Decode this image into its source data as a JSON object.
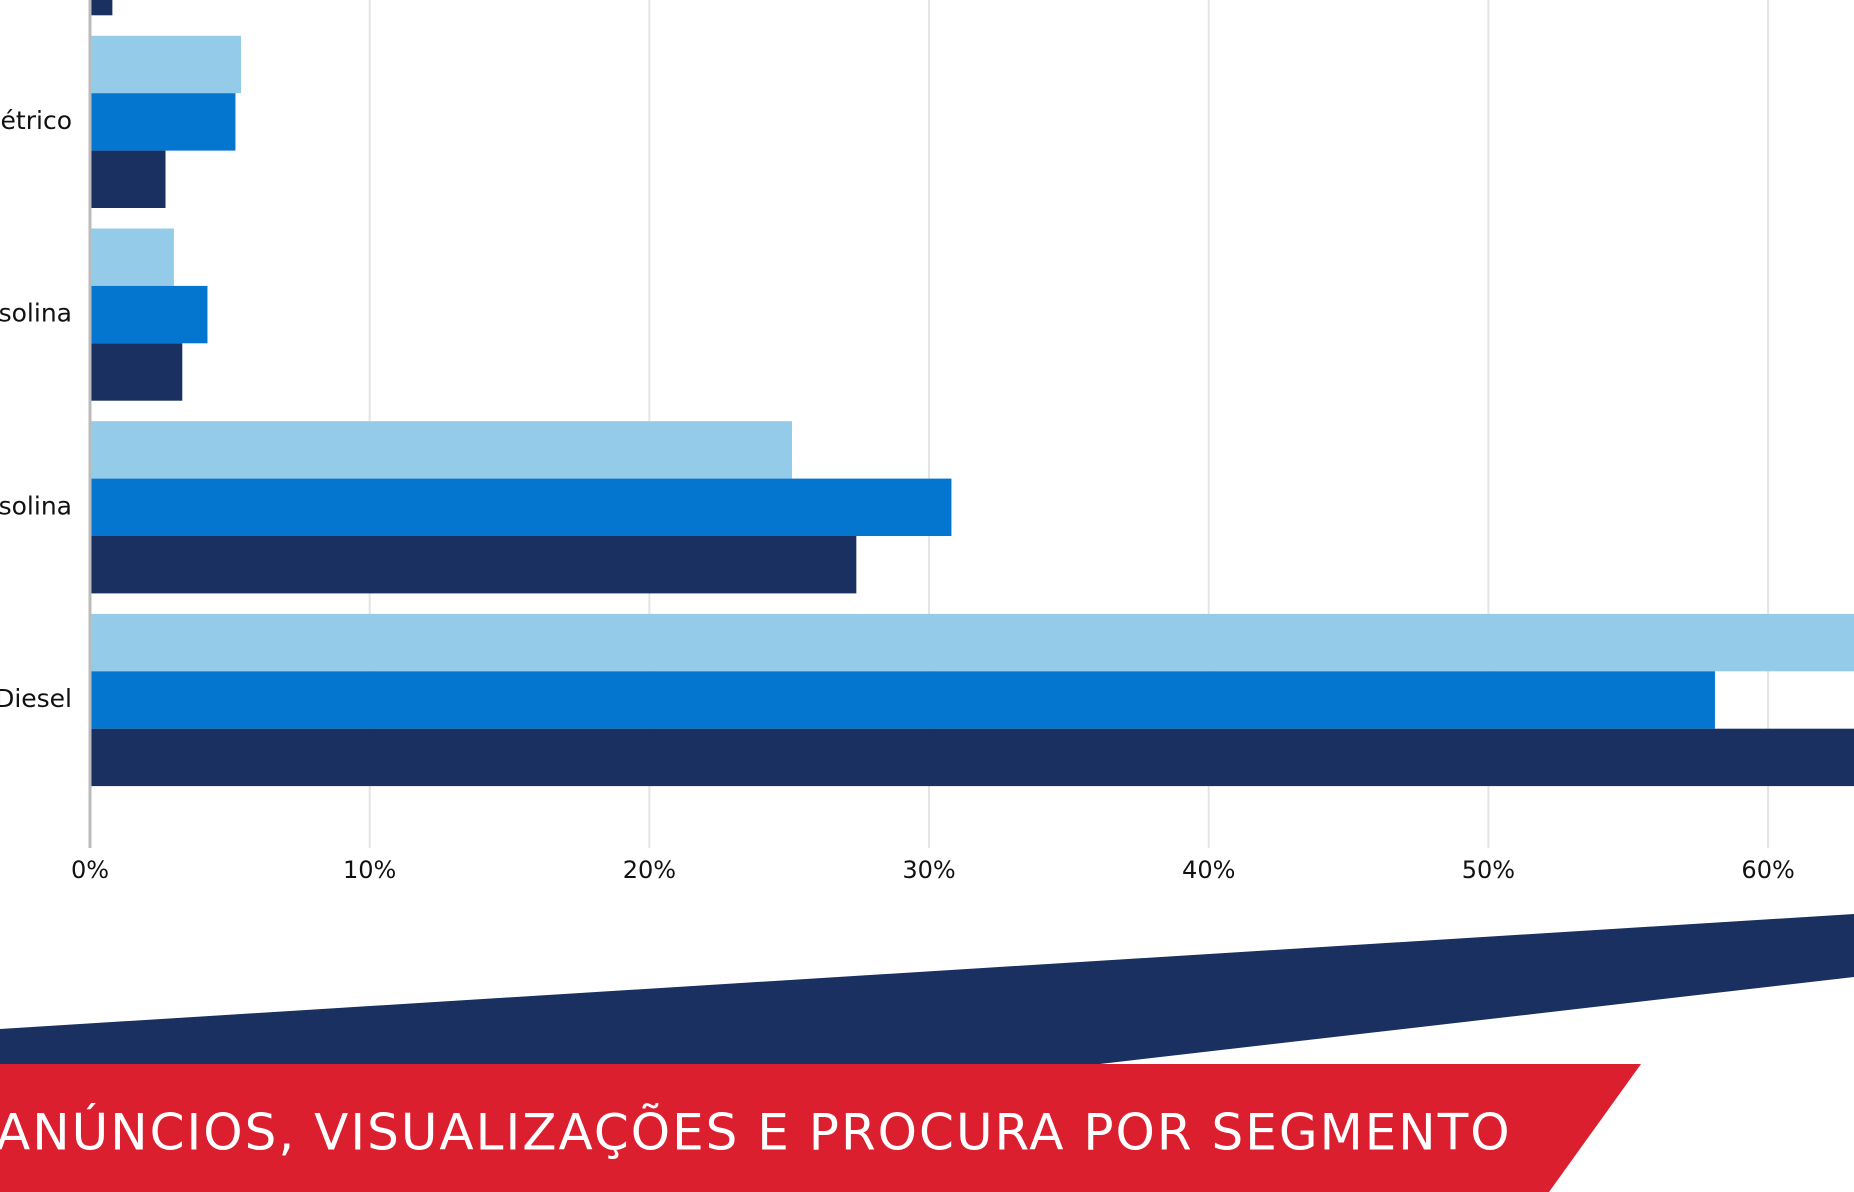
{
  "chart_data": {
    "type": "bar",
    "orientation": "horizontal",
    "categories": [
      null,
      "étrico",
      "solina",
      "solina",
      "Diesel"
    ],
    "series": [
      {
        "color": "#94cbe8",
        "values": [
          null,
          5.4,
          3.0,
          25.1,
          66
        ]
      },
      {
        "color": "#0576d0",
        "values": [
          null,
          5.2,
          4.2,
          30.8,
          58.1
        ]
      },
      {
        "color": "#1a3060",
        "values": [
          0.8,
          2.7,
          3.3,
          27.4,
          66
        ]
      }
    ],
    "xlim": [
      0,
      63
    ],
    "xticks": [
      {
        "value": 0,
        "label": "0%"
      },
      {
        "value": 10,
        "label": "10%"
      },
      {
        "value": 20,
        "label": "20%"
      },
      {
        "value": 30,
        "label": "30%"
      },
      {
        "value": 40,
        "label": "40%"
      },
      {
        "value": 50,
        "label": "50%"
      },
      {
        "value": 60,
        "label": "60%"
      }
    ],
    "grid": true
  },
  "banner": {
    "text": "ANÚNCIOS, VISUALIZAÇÕES E PROCURA POR SEGMENTO"
  }
}
